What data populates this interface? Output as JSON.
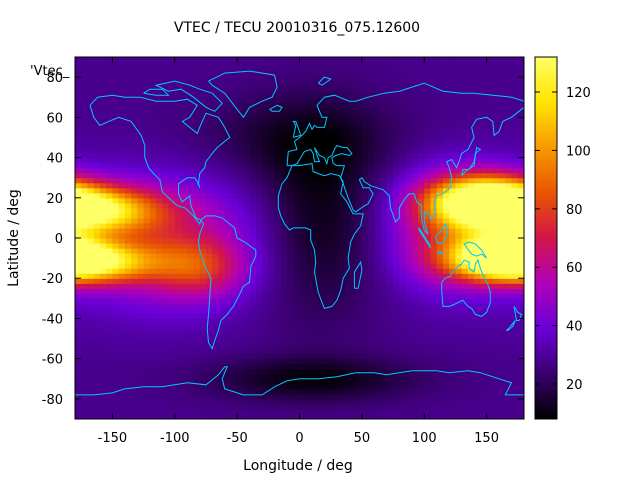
{
  "chart_data": {
    "type": "heatmap",
    "title": "VTEC / TECU 20010316_075.12600",
    "xlabel": "Longitude / deg",
    "ylabel": "Latitude / deg",
    "overlay_label": "'Vtec_",
    "xlim": [
      -180,
      180
    ],
    "ylim": [
      -90,
      90
    ],
    "xticks": [
      -150,
      -100,
      -50,
      0,
      50,
      100,
      150
    ],
    "yticks": [
      -80,
      -60,
      -40,
      -20,
      0,
      20,
      40,
      60,
      80
    ],
    "colorbar": {
      "range": [
        8,
        132
      ],
      "ticks": [
        20,
        40,
        60,
        80,
        100,
        120
      ],
      "palette": [
        "#000000",
        "#3a006f",
        "#6a00d8",
        "#b000b8",
        "#d2154a",
        "#e85600",
        "#f79a00",
        "#ffe400",
        "#ffff66"
      ]
    },
    "grid": false,
    "coastline_color": "#00c8ff",
    "field_model": {
      "description_units": "TECU",
      "background": 28,
      "anomalies": [
        {
          "lon": -175,
          "lat": 14,
          "amp": 95,
          "dlon": 40,
          "dlat": 8
        },
        {
          "lon": -175,
          "lat": -12,
          "amp": 85,
          "dlon": 40,
          "dlat": 7
        },
        {
          "lon": -110,
          "lat": -2,
          "amp": 35,
          "dlon": 55,
          "dlat": 22
        },
        {
          "lon": -80,
          "lat": -15,
          "amp": 30,
          "dlon": 25,
          "dlat": 10
        },
        {
          "lon": 150,
          "lat": 20,
          "amp": 90,
          "dlon": 30,
          "dlat": 8
        },
        {
          "lon": 165,
          "lat": -8,
          "amp": 90,
          "dlon": 25,
          "dlat": 7
        },
        {
          "lon": 125,
          "lat": 5,
          "amp": 45,
          "dlon": 35,
          "dlat": 20
        },
        {
          "lon": 15,
          "lat": 10,
          "amp": -18,
          "dlon": 35,
          "dlat": 35
        },
        {
          "lon": 0,
          "lat": 50,
          "amp": -12,
          "dlon": 60,
          "dlat": 15
        },
        {
          "lon": 10,
          "lat": -70,
          "amp": -18,
          "dlon": 60,
          "dlat": 8
        }
      ]
    }
  }
}
